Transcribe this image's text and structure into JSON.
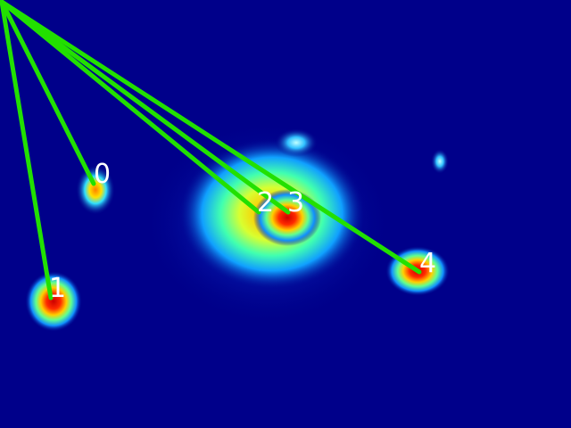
{
  "colors": {
    "background": "#00008a",
    "line": "#22e000",
    "label": "#ffffff"
  },
  "labels": [
    "0",
    "1",
    "2",
    "3",
    "4"
  ]
}
